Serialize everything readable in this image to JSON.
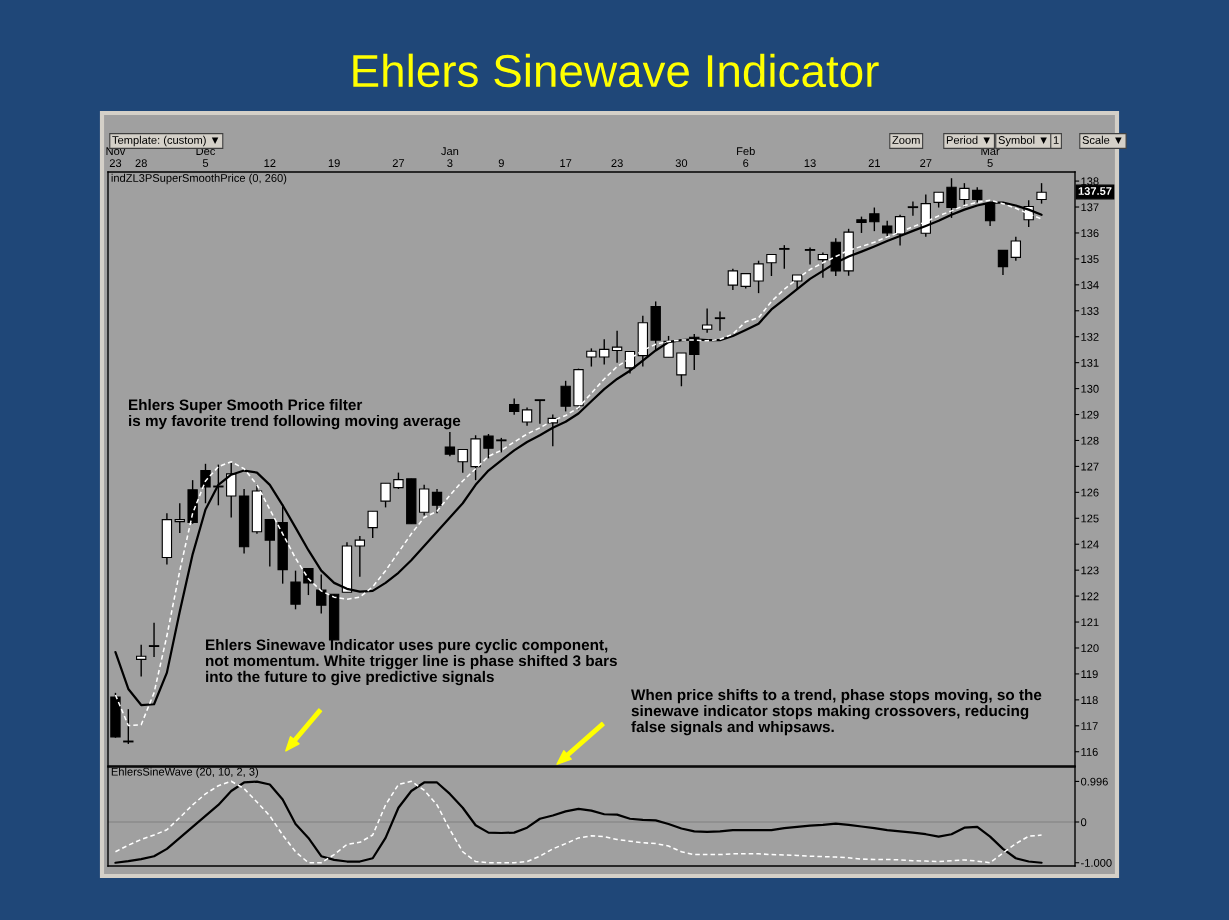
{
  "chart_data": [
    {
      "type": "candlestick",
      "title": "Ehlers Sinewave Indicator",
      "subtitle": "indZL3PSuperSmoothPrice (0, 260)",
      "categories": [
        "Nov\n23",
        null,
        "28",
        null,
        null,
        null,
        null,
        "Dec\n5",
        null,
        null,
        null,
        null,
        "12",
        null,
        null,
        null,
        null,
        "19",
        null,
        null,
        null,
        null,
        "27",
        null,
        null,
        null,
        "Jan\n3",
        null,
        null,
        null,
        "9",
        null,
        null,
        null,
        null,
        "17",
        null,
        null,
        null,
        "23",
        null,
        null,
        null,
        null,
        "30",
        null,
        null,
        null,
        null,
        "Feb\n6",
        null,
        null,
        null,
        null,
        "13",
        null,
        null,
        null,
        null,
        "21",
        null,
        null,
        null,
        "27",
        null,
        null,
        null,
        null,
        "Mar\n5",
        null,
        null,
        null,
        null
      ],
      "ohlc": [
        [
          118.11,
          118.27,
          116.54,
          116.57
        ],
        [
          116.38,
          117.64,
          116.3,
          116.38
        ],
        [
          119.56,
          120.12,
          118.9,
          119.68
        ],
        [
          120.06,
          120.97,
          119.65,
          120.06
        ],
        [
          123.49,
          125.19,
          123.22,
          124.95
        ],
        [
          124.87,
          125.58,
          124.43,
          124.95
        ],
        [
          126.1,
          126.47,
          124.79,
          124.84
        ],
        [
          126.84,
          127.1,
          125.58,
          126.21
        ],
        [
          126.21,
          127.07,
          125.5,
          126.21
        ],
        [
          125.86,
          127.2,
          125.03,
          126.71
        ],
        [
          125.86,
          126.13,
          123.64,
          123.9
        ],
        [
          124.48,
          126.32,
          124.4,
          126.05
        ],
        [
          124.95,
          124.95,
          123.14,
          124.16
        ],
        [
          124.84,
          125.53,
          122.48,
          123.02
        ],
        [
          122.54,
          122.98,
          121.49,
          121.69
        ],
        [
          123.06,
          123.06,
          122.04,
          122.51
        ],
        [
          122.23,
          122.83,
          121.33,
          121.65
        ],
        [
          122.07,
          122.07,
          120.31,
          120.31
        ],
        [
          122.15,
          124.08,
          122.15,
          123.93
        ],
        [
          123.93,
          124.32,
          122.75,
          124.16
        ],
        [
          124.64,
          125.27,
          124.24,
          125.27
        ],
        [
          125.66,
          126.35,
          125.42,
          126.35
        ],
        [
          126.18,
          126.76,
          126.13,
          126.49
        ],
        [
          126.52,
          126.52,
          124.79,
          124.79
        ],
        [
          125.23,
          126.29,
          125.11,
          126.13
        ],
        [
          126.0,
          126.13,
          125.19,
          125.5
        ],
        [
          127.75,
          128.33,
          127.39,
          127.47
        ],
        [
          127.18,
          127.65,
          126.76,
          127.65
        ],
        [
          126.99,
          128.2,
          126.47,
          128.06
        ],
        [
          128.17,
          128.25,
          127.31,
          127.7
        ],
        [
          127.99,
          128.1,
          127.54,
          127.99
        ],
        [
          129.38,
          129.62,
          128.99,
          129.12
        ],
        [
          128.71,
          129.27,
          128.57,
          129.18
        ],
        [
          129.54,
          129.56,
          128.64,
          129.56
        ],
        [
          128.68,
          129.0,
          127.78,
          128.85
        ],
        [
          130.09,
          130.3,
          129.12,
          129.32
        ],
        [
          129.34,
          130.77,
          129.2,
          130.73
        ],
        [
          131.22,
          131.55,
          130.85,
          131.44
        ],
        [
          131.22,
          131.9,
          130.93,
          131.51
        ],
        [
          131.47,
          132.23,
          131.0,
          131.6
        ],
        [
          130.8,
          131.43,
          130.58,
          131.43
        ],
        [
          131.27,
          132.81,
          130.85,
          132.54
        ],
        [
          133.16,
          133.36,
          131.47,
          131.87
        ],
        [
          131.21,
          132.03,
          131.21,
          131.82
        ],
        [
          130.53,
          131.37,
          130.09,
          131.37
        ],
        [
          131.98,
          132.1,
          130.72,
          131.32
        ],
        [
          132.29,
          133.09,
          132.15,
          132.45
        ],
        [
          132.7,
          132.97,
          132.23,
          132.7
        ],
        [
          133.99,
          134.62,
          133.8,
          134.54
        ],
        [
          133.94,
          134.46,
          133.86,
          134.43
        ],
        [
          134.15,
          134.93,
          133.68,
          134.81
        ],
        [
          134.85,
          135.17,
          134.34,
          135.17
        ],
        [
          135.37,
          135.53,
          134.62,
          135.37
        ],
        [
          134.15,
          134.38,
          133.83,
          134.38
        ],
        [
          135.33,
          135.44,
          134.78,
          135.33
        ],
        [
          134.97,
          135.25,
          134.27,
          135.17
        ],
        [
          135.64,
          135.8,
          134.34,
          134.54
        ],
        [
          134.54,
          136.16,
          134.35,
          136.03
        ],
        [
          136.51,
          136.63,
          136.0,
          136.41
        ],
        [
          136.74,
          136.98,
          136.07,
          136.43
        ],
        [
          136.27,
          136.47,
          135.85,
          136.0
        ],
        [
          135.96,
          136.7,
          135.52,
          136.63
        ],
        [
          136.98,
          137.21,
          136.66,
          136.98
        ],
        [
          135.99,
          137.48,
          135.85,
          137.13
        ],
        [
          137.18,
          137.57,
          136.98,
          137.57
        ],
        [
          137.76,
          138.11,
          136.58,
          136.98
        ],
        [
          137.29,
          137.92,
          137.01,
          137.72
        ],
        [
          137.64,
          137.76,
          137.17,
          137.29
        ],
        [
          137.13,
          137.13,
          136.27,
          136.47
        ],
        [
          135.33,
          135.33,
          134.38,
          134.7
        ],
        [
          135.06,
          135.85,
          134.93,
          135.69
        ],
        [
          136.51,
          137.26,
          136.23,
          137.02
        ],
        [
          137.29,
          137.92,
          137.13,
          137.57
        ]
      ],
      "series": [
        {
          "type": "line",
          "color": "#000000",
          "line_style": "solid",
          "values": [
            119.84,
            118.42,
            117.8,
            117.83,
            119.05,
            121.41,
            123.61,
            125.34,
            126.29,
            126.68,
            126.84,
            126.76,
            126.29,
            125.5,
            124.64,
            123.77,
            122.98,
            122.51,
            122.28,
            122.17,
            122.2,
            122.51,
            122.9,
            123.38,
            123.93,
            124.48,
            125.03,
            125.58,
            126.29,
            126.84,
            127.23,
            127.62,
            127.94,
            128.2,
            128.49,
            128.72,
            129.04,
            129.51,
            129.98,
            130.37,
            130.69,
            131.08,
            131.47,
            131.79,
            131.87,
            131.9,
            131.87,
            131.87,
            132.03,
            132.26,
            132.5,
            133.05,
            133.44,
            133.83,
            134.23,
            134.54,
            134.85,
            135.09,
            135.28,
            135.48,
            135.69,
            135.88,
            136.08,
            136.27,
            136.47,
            136.7,
            136.9,
            137.06,
            137.17,
            137.17,
            137.06,
            136.9,
            136.7
          ]
        },
        {
          "type": "line",
          "color": "#ffffff",
          "line_style": "dashed",
          "values": [
            118.19,
            117.01,
            117.04,
            118.27,
            120.47,
            122.98,
            125.19,
            126.44,
            126.99,
            127.18,
            126.91,
            126.29,
            125.34,
            124.4,
            123.46,
            122.67,
            122.2,
            121.96,
            121.88,
            121.96,
            122.36,
            122.98,
            123.69,
            124.4,
            125.03,
            125.27,
            125.89,
            126.44,
            126.91,
            127.39,
            127.62,
            127.94,
            128.25,
            128.49,
            128.77,
            128.96,
            129.27,
            129.82,
            130.37,
            130.85,
            131.16,
            131.47,
            131.71,
            131.82,
            131.87,
            131.87,
            131.84,
            131.9,
            132.1,
            132.58,
            132.73,
            133.36,
            133.83,
            134.23,
            134.59,
            134.85,
            135.09,
            135.33,
            135.48,
            135.64,
            135.85,
            136.03,
            136.24,
            136.43,
            136.66,
            136.85,
            137.06,
            137.18,
            137.26,
            137.13,
            136.95,
            136.74,
            136.54
          ]
        }
      ],
      "ylim": [
        115.45,
        138.35
      ],
      "yticks": [
        116,
        117,
        118,
        119,
        120,
        121,
        122,
        123,
        124,
        125,
        126,
        127,
        128,
        129,
        130,
        131,
        132,
        133,
        134,
        135,
        136,
        137,
        138
      ],
      "annotations": [
        "Ehlers Super Smooth Price filter\nis my favorite trend following moving average",
        "Ehlers Sinewave Indicator uses pure cyclic component,\nnot momentum. White trigger line is phase shifted 3 bars\ninto the future to give predictive signals",
        "When price shifts to a trend, phase stops moving, so the\nsinewave indicator stops making crossovers, reducing\nfalse signals and whipsaws.",
        "Template: (custom) ▼",
        "Zoom",
        "Period ▼",
        "Symbol ▼",
        "1",
        "Scale ▼",
        "137.57"
      ]
    },
    {
      "type": "line",
      "title": "EhlersSineWave (20, 10, 2, 3)",
      "tick_labels": "y",
      "categories": [
        null,
        null,
        null,
        null,
        null,
        null,
        null,
        null,
        null,
        null,
        null,
        null,
        null,
        null,
        null,
        null,
        null,
        null,
        null,
        null,
        null,
        null,
        null,
        null,
        null,
        null,
        null,
        null,
        null,
        null,
        null,
        null,
        null,
        null,
        null,
        null,
        null,
        null,
        null,
        null,
        null,
        null,
        null,
        null,
        null,
        null,
        null,
        null,
        null,
        null,
        null,
        null,
        null,
        null,
        null,
        null,
        null,
        null,
        null,
        null,
        null,
        null,
        null,
        null,
        null,
        null,
        null,
        null,
        null,
        null,
        null,
        null,
        null
      ],
      "series": [
        {
          "color": "#000000",
          "line_style": "solid",
          "values": [
            -1.0,
            -0.96,
            -0.91,
            -0.84,
            -0.66,
            -0.39,
            -0.12,
            0.15,
            0.42,
            0.76,
            0.97,
            0.99,
            0.92,
            0.55,
            -0.05,
            -0.39,
            -0.84,
            -0.93,
            -0.97,
            -0.97,
            -0.89,
            -0.39,
            0.35,
            0.76,
            0.97,
            0.97,
            0.69,
            0.35,
            -0.08,
            -0.26,
            -0.27,
            -0.26,
            -0.14,
            0.08,
            0.16,
            0.26,
            0.32,
            0.28,
            0.19,
            0.18,
            0.08,
            0.05,
            0.04,
            -0.05,
            -0.16,
            -0.23,
            -0.24,
            -0.23,
            -0.2,
            -0.2,
            -0.2,
            -0.2,
            -0.15,
            -0.12,
            -0.09,
            -0.07,
            -0.04,
            -0.07,
            -0.11,
            -0.15,
            -0.2,
            -0.23,
            -0.26,
            -0.3,
            -0.36,
            -0.3,
            -0.14,
            -0.12,
            -0.36,
            -0.66,
            -0.89,
            -0.97,
            -1.0
          ]
        },
        {
          "color": "#ffffff",
          "line_style": "dashed",
          "values": [
            -0.73,
            -0.57,
            -0.43,
            -0.32,
            -0.19,
            0.11,
            0.42,
            0.69,
            0.89,
            1.0,
            0.82,
            0.49,
            0.15,
            -0.32,
            -0.73,
            -1.0,
            -1.0,
            -0.8,
            -0.55,
            -0.5,
            -0.32,
            0.42,
            0.92,
            1.0,
            0.78,
            0.42,
            -0.19,
            -0.73,
            -0.97,
            -1.0,
            -1.0,
            -1.0,
            -0.97,
            -0.84,
            -0.66,
            -0.53,
            -0.39,
            -0.34,
            -0.36,
            -0.43,
            -0.47,
            -0.51,
            -0.53,
            -0.59,
            -0.73,
            -0.8,
            -0.8,
            -0.8,
            -0.78,
            -0.78,
            -0.78,
            -0.8,
            -0.81,
            -0.82,
            -0.84,
            -0.85,
            -0.86,
            -0.88,
            -0.91,
            -0.92,
            -0.92,
            -0.93,
            -0.95,
            -0.96,
            -0.97,
            -0.95,
            -0.93,
            -0.96,
            -1.0,
            -0.76,
            -0.53,
            -0.35,
            -0.32
          ]
        }
      ],
      "ylim": [
        -1.08,
        1.35
      ],
      "yticks": [
        0.996,
        0,
        {
          "value": -1,
          "label": "-1.000"
        }
      ],
      "ref_lines": [
        {
          "axis": "y",
          "value": 0,
          "color": "#808080"
        }
      ]
    }
  ]
}
